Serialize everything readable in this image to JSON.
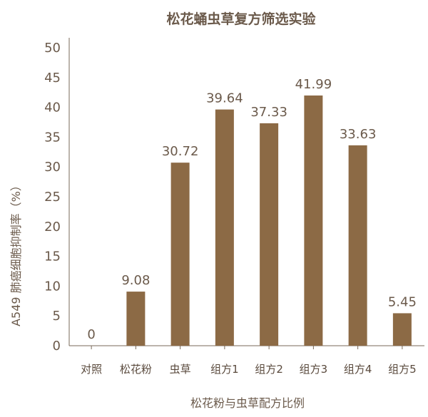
{
  "chart_data": {
    "type": "bar",
    "title": "松花蛹虫草复方筛选实验",
    "xlabel": "松花粉与虫草配方比例",
    "ylabel": "A549 肺癌细胞抑制率（%）",
    "categories": [
      "对照",
      "松花粉",
      "虫草",
      "组方1",
      "组方2",
      "组方3",
      "组方4",
      "组方5"
    ],
    "values": [
      0,
      9.08,
      30.72,
      39.64,
      37.33,
      41.99,
      33.63,
      5.45
    ],
    "value_labels": [
      "0",
      "9.08",
      "30.72",
      "39.64",
      "37.33",
      "41.99",
      "33.63",
      "5.45"
    ],
    "ylim": [
      0,
      50
    ],
    "y_ticks": [
      0,
      5,
      10,
      15,
      20,
      25,
      30,
      35,
      40,
      45,
      50
    ],
    "grid": false,
    "legend": "none",
    "colors": {
      "bar": "#8c6a45",
      "axis": "#7a6a5a",
      "text": "#6b5a4b"
    }
  }
}
